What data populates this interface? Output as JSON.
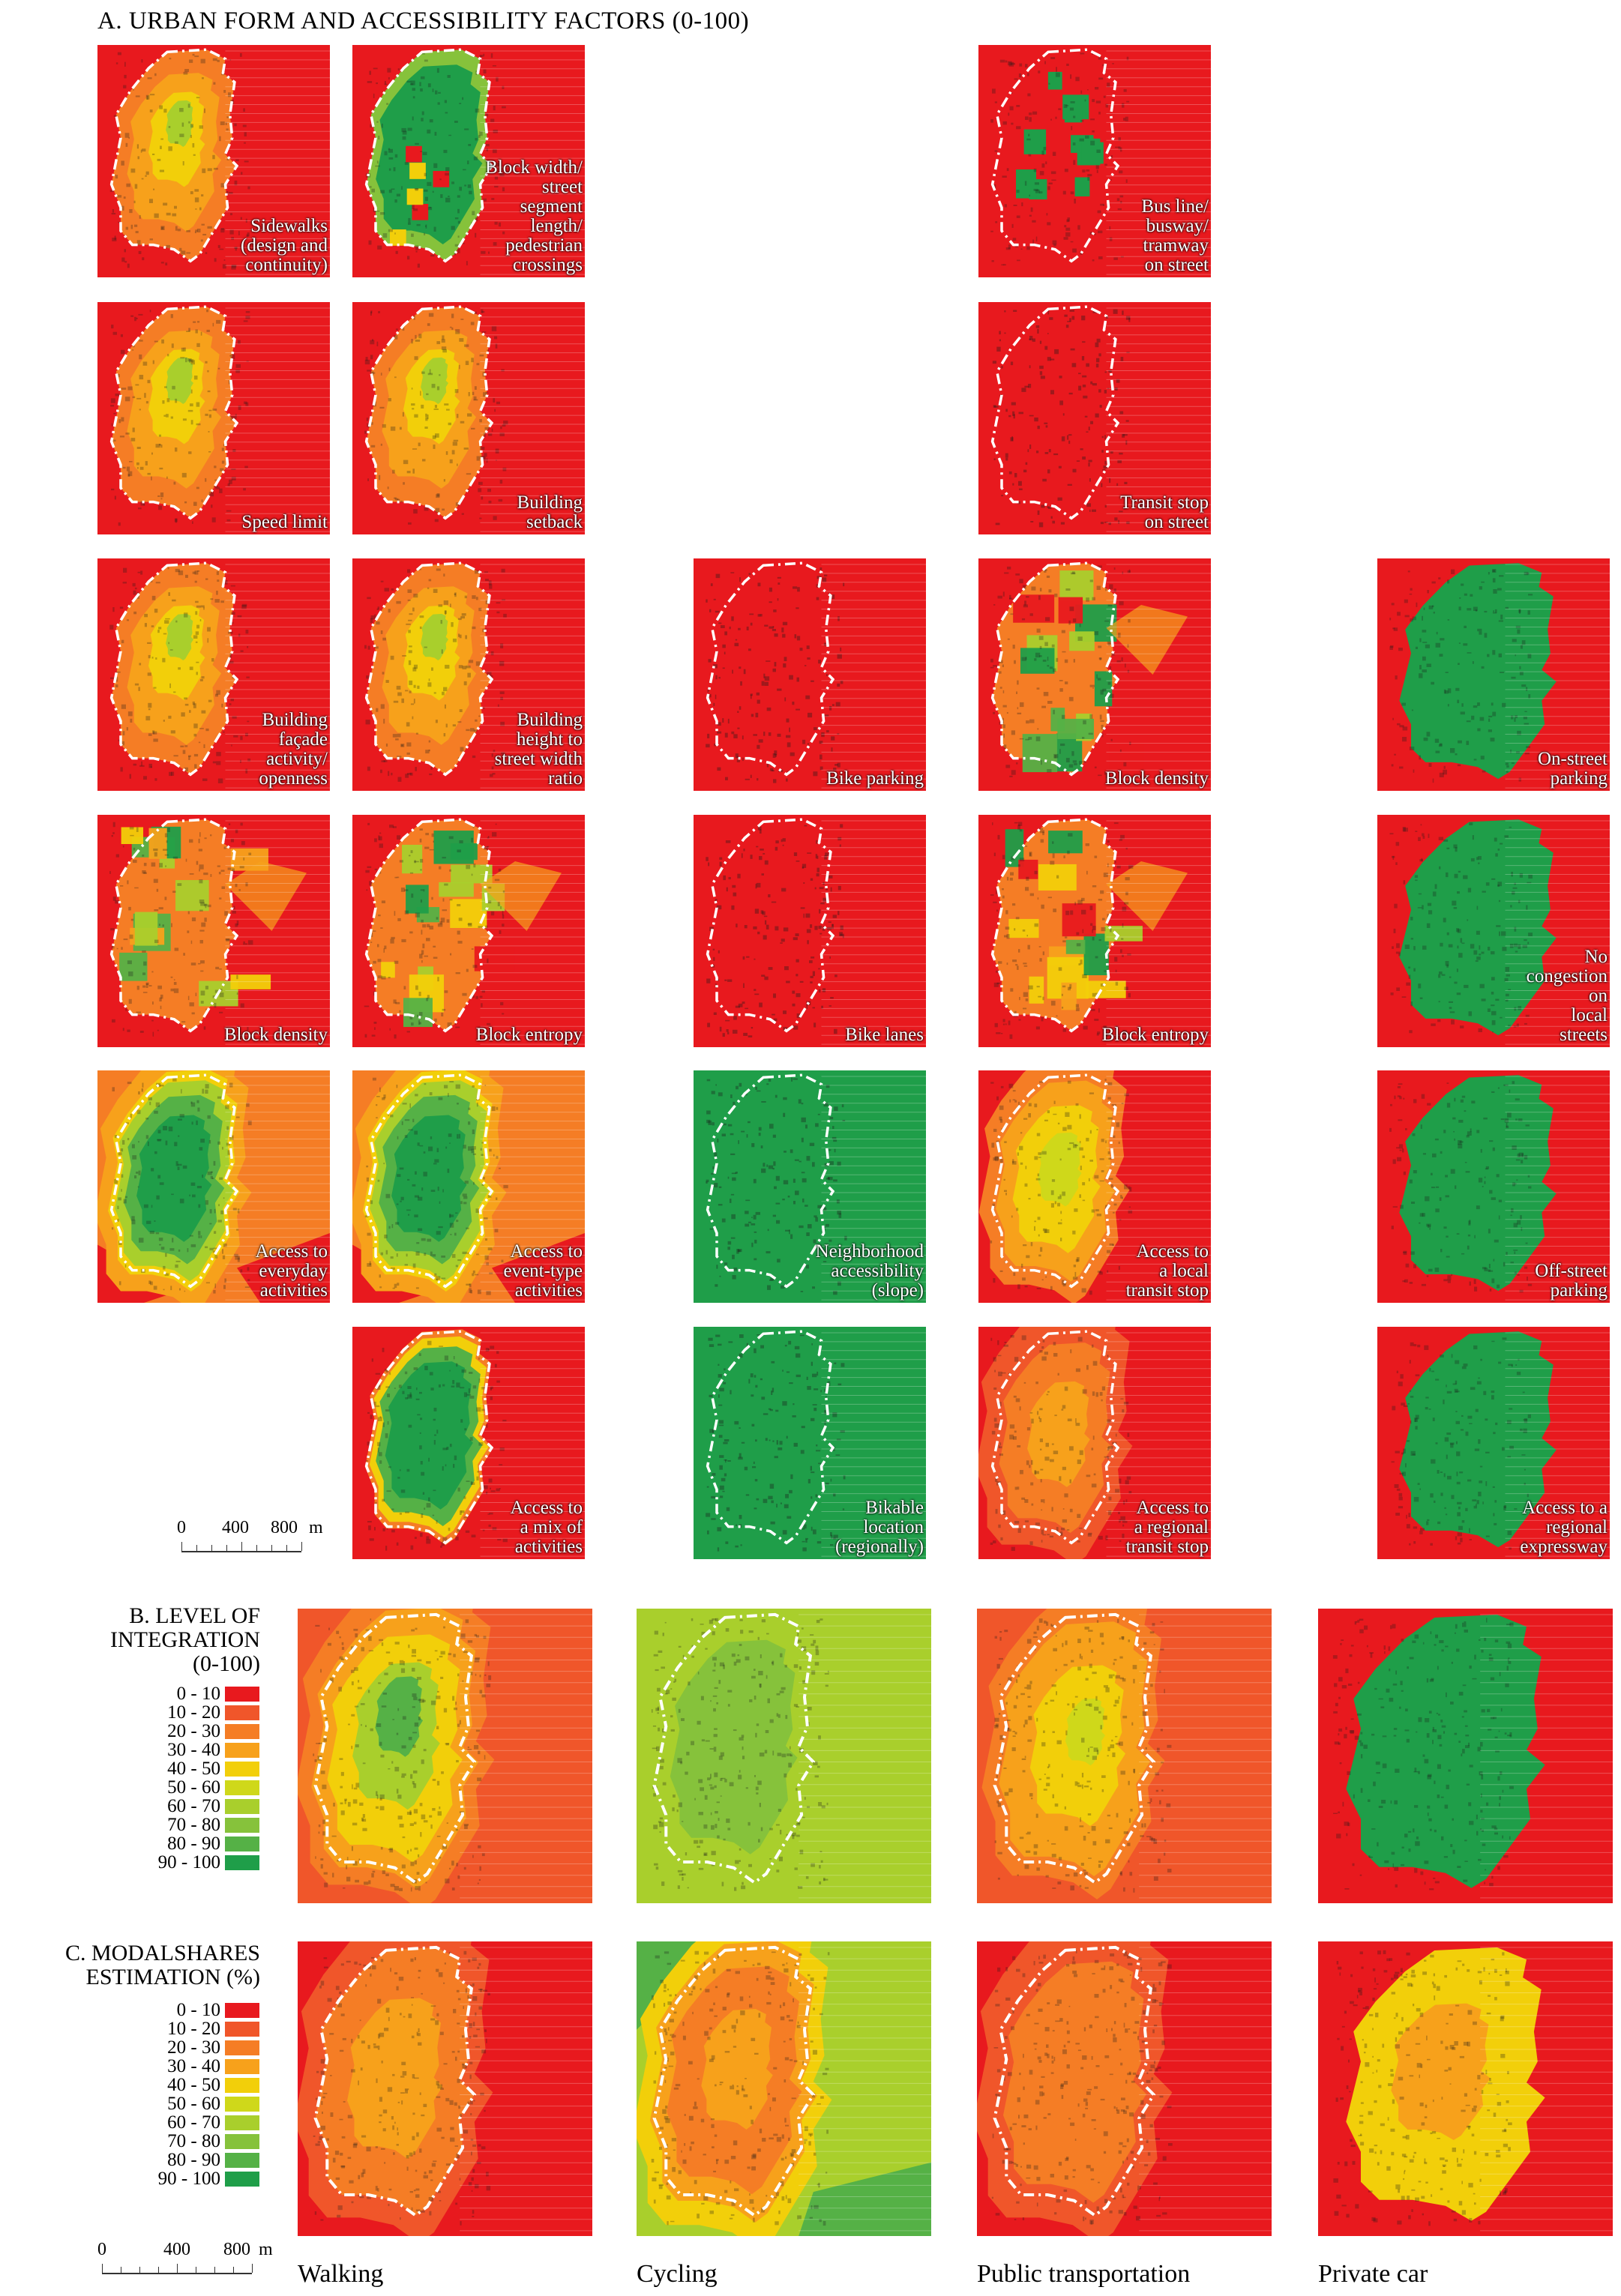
{
  "section_a": {
    "title": "A. URBAN FORM AND ACCESSIBILITY FACTORS (0-100)",
    "columns": [
      {
        "panels": [
          {
            "label": "Sidewalks\n(design and\ncontinuity)",
            "scheme": "walk"
          },
          {
            "label": "Speed limit",
            "scheme": "walk"
          },
          {
            "label": "Building\nfaçade\nactivity/\nopenness",
            "scheme": "walk"
          },
          {
            "label": "Block density",
            "scheme": "mixed"
          },
          {
            "label": "Access to\neveryday\nactivities",
            "scheme": "access"
          }
        ]
      },
      {
        "panels": [
          {
            "label": "Block width/\nstreet\nsegment\nlength/\npedestrian\ncrossings",
            "scheme": "greenblocks"
          },
          {
            "label": "Building\nsetback",
            "scheme": "walk"
          },
          {
            "label": "Building\nheight to\nstreet width\nratio",
            "scheme": "walk"
          },
          {
            "label": "Block entropy",
            "scheme": "mixed"
          },
          {
            "label": "Access to\nevent-type\nactivities",
            "scheme": "access"
          },
          {
            "label": "Access to\na mix of\nactivities",
            "scheme": "greencore"
          }
        ]
      },
      {
        "panels": [
          {
            "label": "Bike parking",
            "scheme": "red"
          },
          {
            "label": "Bike lanes",
            "scheme": "red"
          },
          {
            "label": "Neighborhood\naccessibility\n(slope)",
            "scheme": "green"
          },
          {
            "label": "Bikable\nlocation\n(regionally)",
            "scheme": "green"
          }
        ]
      },
      {
        "panels": [
          {
            "label": "Bus line/\nbusway/\ntramway\non street",
            "scheme": "redgreenblocks"
          },
          {
            "label": "Transit stop\non street",
            "scheme": "red"
          },
          {
            "label": "Block density",
            "scheme": "mixed"
          },
          {
            "label": "Block entropy",
            "scheme": "mixed"
          },
          {
            "label": "Access to\na local\ntransit stop",
            "scheme": "transit"
          },
          {
            "label": "Access to\na regional\ntransit stop",
            "scheme": "transit2"
          }
        ]
      },
      {
        "panels": [
          {
            "label": "On-street\nparking",
            "scheme": "car"
          },
          {
            "label": "No\ncongestion\non\nlocal\nstreets",
            "scheme": "car"
          },
          {
            "label": "Off-street\nparking",
            "scheme": "car"
          },
          {
            "label": "Access to a\nregional\nexpressway",
            "scheme": "car"
          }
        ]
      }
    ]
  },
  "section_b": {
    "title": "B. LEVEL OF\nINTEGRATION\n(0-100)",
    "panels": [
      {
        "mode": "Walking",
        "scheme": "walkB"
      },
      {
        "mode": "Cycling",
        "scheme": "cycleB"
      },
      {
        "mode": "Public transportation",
        "scheme": "transitB"
      },
      {
        "mode": "Private car",
        "scheme": "carB"
      }
    ]
  },
  "section_c": {
    "title": "C. MODALSHARES\nESTIMATION (%)",
    "panels": [
      {
        "mode": "Walking",
        "scheme": "walkC"
      },
      {
        "mode": "Cycling",
        "scheme": "cycleC"
      },
      {
        "mode": "Public transportation",
        "scheme": "transitC"
      },
      {
        "mode": "Private car",
        "scheme": "carC"
      }
    ]
  },
  "legend": {
    "classes": [
      "0 - 10",
      "10 - 20",
      "20 - 30",
      "30 - 40",
      "40 - 50",
      "50 - 60",
      "60 - 70",
      "70  - 80",
      "80 - 90",
      "90 - 100"
    ],
    "colors": [
      "#e8191e",
      "#f0562a",
      "#f57d25",
      "#f7a11b",
      "#f2cf0a",
      "#cfd81a",
      "#a9cf2c",
      "#86c23b",
      "#55b146",
      "#1f9e49"
    ]
  },
  "scale_bar": {
    "ticks": [
      "0",
      "400",
      "800"
    ],
    "unit": "m"
  },
  "modes": [
    "Walking",
    "Cycling",
    "Public transportation",
    "Private car"
  ]
}
